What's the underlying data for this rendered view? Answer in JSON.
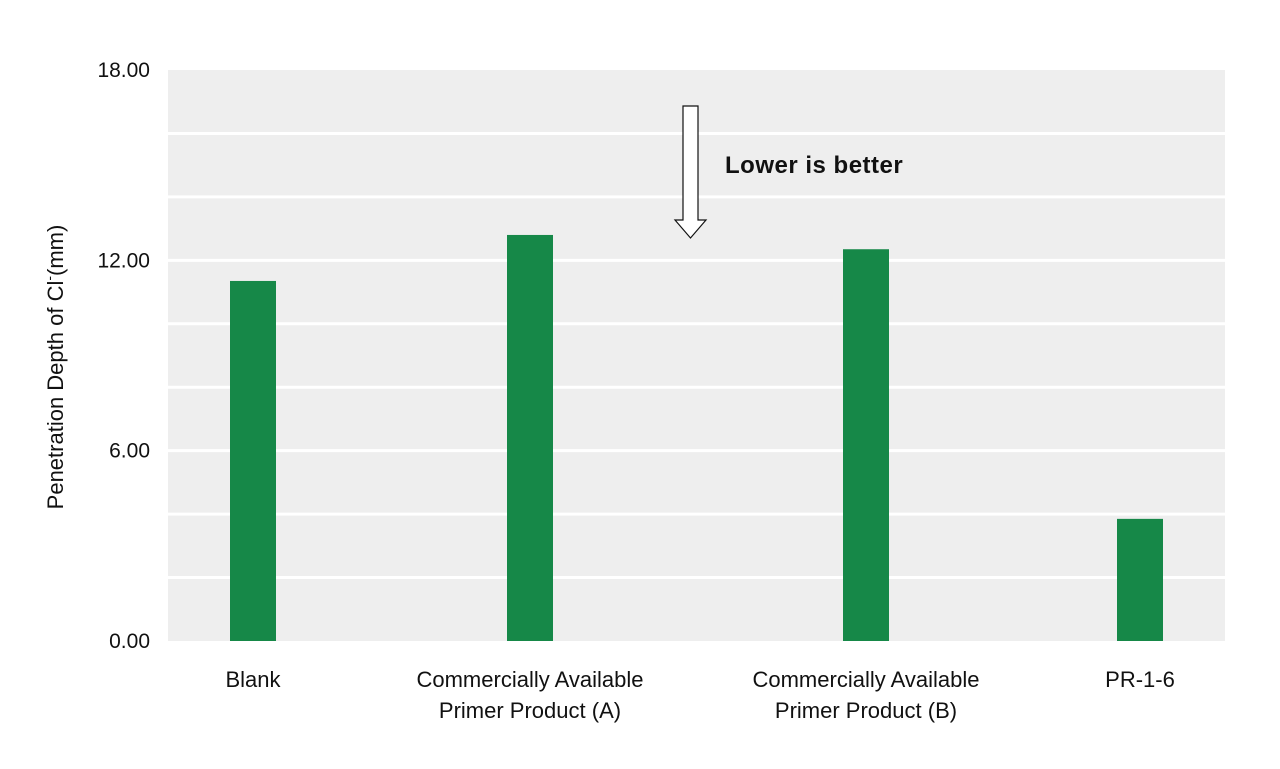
{
  "chart_data": {
    "type": "bar",
    "categories": [
      [
        "Blank"
      ],
      [
        "Commercially Available",
        "Primer Product (A)"
      ],
      [
        "Commercially Available",
        "Primer Product (B)"
      ],
      [
        "PR-1-6"
      ]
    ],
    "values": [
      11.35,
      12.8,
      12.35,
      3.85
    ],
    "ylabel_main": "Penetration Depth of Cl",
    "ylabel_sup": "-",
    "ylabel_unit": "(mm)",
    "ylim": [
      0,
      18
    ],
    "yticks": [
      "0.00",
      "6.00",
      "12.00",
      "18.00"
    ],
    "ytick_values": [
      0,
      6,
      12,
      18
    ],
    "minor_grid_step": 2,
    "grid": true,
    "annotation": "Lower is better",
    "colors": {
      "bar": "#168848",
      "plot_bg": "#eeeeee",
      "grid": "#ffffff"
    }
  }
}
